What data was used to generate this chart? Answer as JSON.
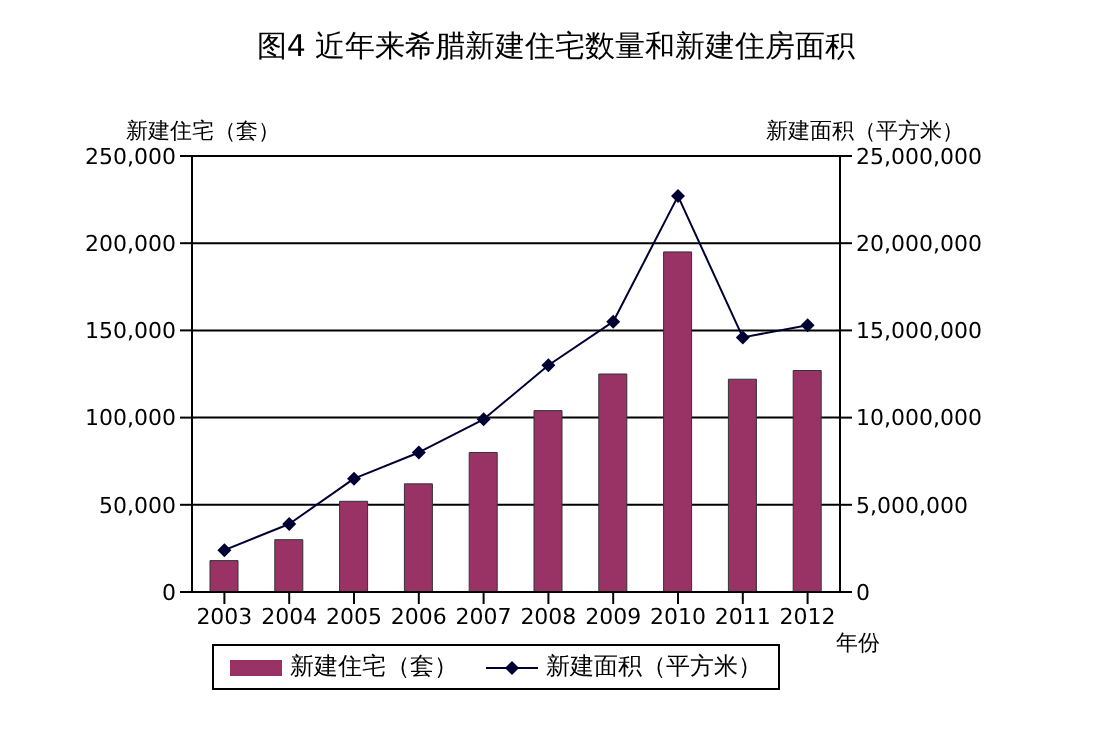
{
  "chart_data": {
    "type": "bar",
    "title": "图4 近年来希腊新建住宅数量和新建住房面积",
    "xlabel": "年份",
    "ylabel": "新建住宅（套）",
    "y2label": "新建面积（平方米）",
    "categories": [
      "2003",
      "2004",
      "2005",
      "2006",
      "2007",
      "2008",
      "2009",
      "2010",
      "2011",
      "2012"
    ],
    "series": [
      {
        "name": "新建住宅（套）",
        "color": "#993366",
        "values": [
          18000,
          30000,
          52000,
          62000,
          80000,
          104000,
          125000,
          195000,
          122000,
          127000
        ]
      },
      {
        "name": "新建面积（平方米）",
        "type": "line",
        "axis": "y2",
        "color": "#000033",
        "marker": "diamond",
        "line_style": "solid",
        "values": [
          2400000,
          3900000,
          6500000,
          8000000,
          9900000,
          13000000,
          15500000,
          22700000,
          14600000,
          15300000
        ]
      }
    ],
    "ylim": [
      0,
      250000
    ],
    "yticks": [
      0,
      {
        "value": 50000,
        "label": "50,000"
      },
      {
        "value": 100000,
        "label": "100,000"
      },
      {
        "value": 150000,
        "label": "150,000"
      },
      {
        "value": 200000,
        "label": "200,000"
      },
      {
        "value": 250000,
        "label": "250,000"
      }
    ],
    "y2lim": [
      0,
      25000000
    ],
    "y2ticks": [
      0,
      {
        "value": 5000000,
        "label": "5,000,000"
      },
      {
        "value": 10000000,
        "label": "10,000,000"
      },
      {
        "value": 15000000,
        "label": "15,000,000"
      },
      {
        "value": 20000000,
        "label": "20,000,000"
      },
      {
        "value": 25000000,
        "label": "25,000,000"
      }
    ],
    "grid": "y",
    "legend": "bottom"
  }
}
